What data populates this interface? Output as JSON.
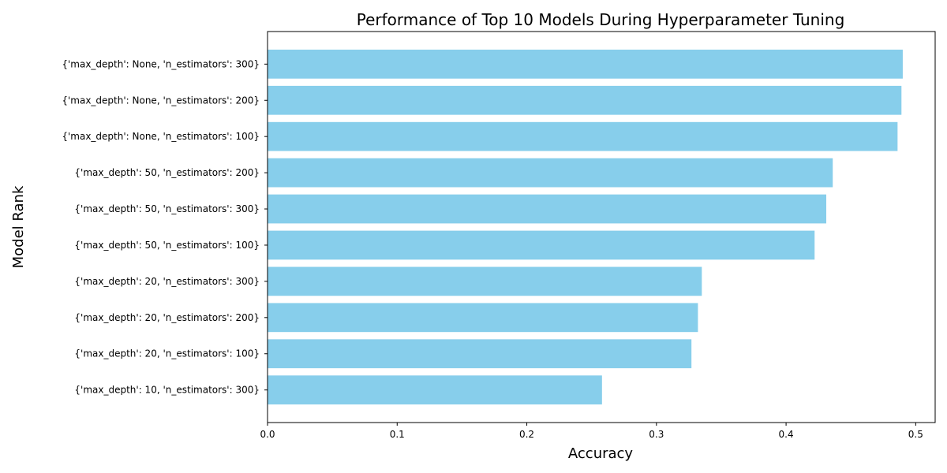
{
  "chart_data": {
    "type": "bar",
    "orientation": "horizontal",
    "title": "Performance of Top 10 Models During Hyperparameter Tuning",
    "xlabel": "Accuracy",
    "ylabel": "Model Rank",
    "categories": [
      "{'max_depth': None, 'n_estimators': 300}",
      "{'max_depth': None, 'n_estimators': 200}",
      "{'max_depth': None, 'n_estimators': 100}",
      "{'max_depth': 50, 'n_estimators': 200}",
      "{'max_depth': 50, 'n_estimators': 300}",
      "{'max_depth': 50, 'n_estimators': 100}",
      "{'max_depth': 20, 'n_estimators': 300}",
      "{'max_depth': 20, 'n_estimators': 200}",
      "{'max_depth': 20, 'n_estimators': 100}",
      "{'max_depth': 10, 'n_estimators': 300}"
    ],
    "values": [
      0.49,
      0.489,
      0.486,
      0.436,
      0.431,
      0.422,
      0.335,
      0.332,
      0.327,
      0.258
    ],
    "xlim": [
      0,
      0.515
    ],
    "xticks": [
      "0.0",
      "0.1",
      "0.2",
      "0.3",
      "0.4",
      "0.5"
    ],
    "bar_color": "#87CEEB",
    "grid": false
  }
}
